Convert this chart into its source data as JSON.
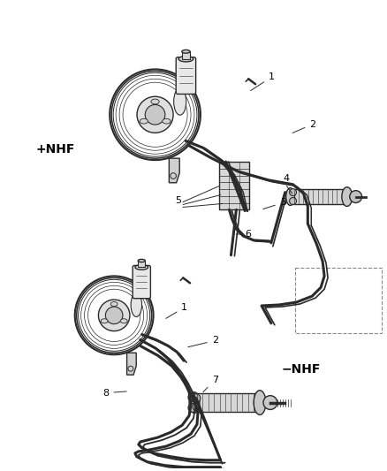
{
  "bg_color": "#ffffff",
  "line_color": "#2a2a2a",
  "label_color": "#000000",
  "label_nhf_plus": "+NHF",
  "label_nhf_minus": "−NHF",
  "font_size_labels": 8,
  "font_size_nhf": 10
}
